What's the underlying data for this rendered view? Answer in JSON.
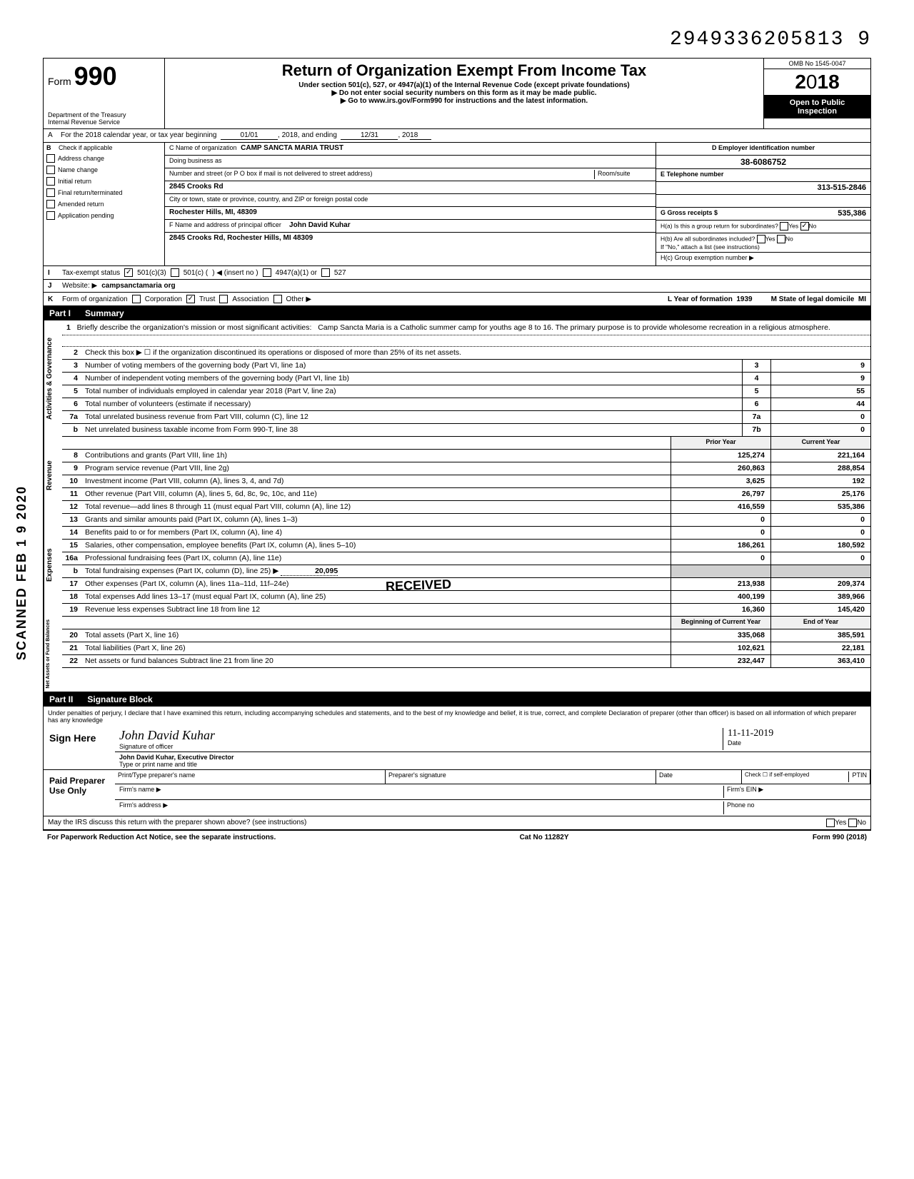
{
  "top_id": "2949336205813  9",
  "scanned_stamp": "SCANNED FEB 1 9 2020",
  "header": {
    "form_label": "Form",
    "form_number": "990",
    "dept": "Department of the Treasury",
    "irs": "Internal Revenue Service",
    "title": "Return of Organization Exempt From Income Tax",
    "subtitle": "Under section 501(c), 527, or 4947(a)(1) of the Internal Revenue Code (except private foundations)",
    "warn": "▶ Do not enter social security numbers on this form as it may be made public.",
    "goto": "▶ Go to www.irs.gov/Form990 for instructions and the latest information.",
    "omb": "OMB No 1545-0047",
    "year": "2018",
    "open1": "Open to Public",
    "open2": "Inspection"
  },
  "rowA": {
    "label": "A",
    "text1": "For the 2018 calendar year, or tax year beginning",
    "begin": "01/01",
    "mid": ", 2018, and ending",
    "end": "12/31",
    "tail": ", 20",
    "yy": "18"
  },
  "colB": {
    "label": "B",
    "hint": "Check if applicable",
    "items": [
      "Address change",
      "Name change",
      "Initial return",
      "Final return/terminated",
      "Amended return",
      "Application pending"
    ]
  },
  "colC": {
    "name_label": "C Name of organization",
    "name": "CAMP SANCTA MARIA TRUST",
    "dba_label": "Doing business as",
    "dba": "",
    "addr_label": "Number and street (or P O  box if mail is not delivered to street address)",
    "room_label": "Room/suite",
    "addr": "2845 Crooks Rd",
    "city_label": "City or town, state or province, country, and ZIP or foreign postal code",
    "city": "Rochester Hills, MI,  48309",
    "f_label": "F Name and address of principal officer",
    "f_name": "John David Kuhar",
    "f_addr": "2845 Crooks Rd, Rochester Hills, MI 48309"
  },
  "colD": {
    "d_label": "D Employer identification number",
    "ein": "38-6086752",
    "e_label": "E Telephone number",
    "phone": "313-515-2846",
    "g_label": "G Gross receipts $",
    "gross": "535,386",
    "ha": "H(a) Is this a group return for subordinates?",
    "ha_yes": "Yes",
    "ha_no": "No",
    "hb": "H(b) Are all subordinates included?",
    "hb_tail": "If \"No,\" attach a list  (see instructions)",
    "hc": "H(c) Group exemption number ▶"
  },
  "rowI": {
    "label": "I",
    "text": "Tax-exempt status",
    "opt1": "501(c)(3)",
    "opt2": "501(c) (",
    "insert": ") ◀ (insert no )",
    "opt3": "4947(a)(1) or",
    "opt4": "527"
  },
  "rowJ": {
    "label": "J",
    "text": "Website: ▶",
    "site": "campsanctamaria org"
  },
  "rowK": {
    "label": "K",
    "text": "Form of organization",
    "opts": [
      "Corporation",
      "Trust",
      "Association",
      "Other ▶"
    ],
    "l_label": "L Year of formation",
    "l_val": "1939",
    "m_label": "M State of legal domicile",
    "m_val": "MI"
  },
  "part1": {
    "label": "Part I",
    "title": "Summary"
  },
  "mission": {
    "num": "1",
    "lead": "Briefly describe the organization's mission or most significant activities:",
    "text": "Camp Sancta Maria is a Catholic summer camp for youths age 8 to 16. The primary purpose is to provide wholesome recreation in a religious atmosphere."
  },
  "line2": {
    "num": "2",
    "text": "Check this box ▶ ☐ if the organization discontinued its operations or disposed of more than 25% of its net assets."
  },
  "gov_lines": [
    {
      "num": "3",
      "desc": "Number of voting members of the governing body (Part VI, line 1a)",
      "ref": "3",
      "val": "9"
    },
    {
      "num": "4",
      "desc": "Number of independent voting members of the governing body (Part VI, line 1b)",
      "ref": "4",
      "val": "9"
    },
    {
      "num": "5",
      "desc": "Total number of individuals employed in calendar year 2018 (Part V, line 2a)",
      "ref": "5",
      "val": "55"
    },
    {
      "num": "6",
      "desc": "Total number of volunteers (estimate if necessary)",
      "ref": "6",
      "val": "44"
    },
    {
      "num": "7a",
      "desc": "Total unrelated business revenue from Part VIII, column (C), line 12",
      "ref": "7a",
      "val": "0"
    },
    {
      "num": "b",
      "desc": "Net unrelated business taxable income from Form 990-T, line 38",
      "ref": "7b",
      "val": "0"
    }
  ],
  "col_headers": {
    "prior": "Prior Year",
    "curr": "Current Year"
  },
  "revenue_lines": [
    {
      "num": "8",
      "desc": "Contributions and grants (Part VIII, line 1h)",
      "prior": "125,274",
      "curr": "221,164"
    },
    {
      "num": "9",
      "desc": "Program service revenue (Part VIII, line 2g)",
      "prior": "260,863",
      "curr": "288,854"
    },
    {
      "num": "10",
      "desc": "Investment income (Part VIII, column (A), lines 3, 4, and 7d)",
      "prior": "3,625",
      "curr": "192"
    },
    {
      "num": "11",
      "desc": "Other revenue (Part VIII, column (A), lines 5, 6d, 8c, 9c, 10c, and 11e)",
      "prior": "26,797",
      "curr": "25,176"
    },
    {
      "num": "12",
      "desc": "Total revenue—add lines 8 through 11 (must equal Part VIII, column (A), line 12)",
      "prior": "416,559",
      "curr": "535,386"
    }
  ],
  "expense_lines": [
    {
      "num": "13",
      "desc": "Grants and similar amounts paid (Part IX, column (A), lines 1–3)",
      "prior": "0",
      "curr": "0"
    },
    {
      "num": "14",
      "desc": "Benefits paid to or for members (Part IX, column (A), line 4)",
      "prior": "0",
      "curr": "0"
    },
    {
      "num": "15",
      "desc": "Salaries, other compensation, employee benefits (Part IX, column (A), lines 5–10)",
      "prior": "186,261",
      "curr": "180,592"
    },
    {
      "num": "16a",
      "desc": "Professional fundraising fees (Part IX, column (A), line 11e)",
      "prior": "0",
      "curr": "0"
    }
  ],
  "line16b": {
    "num": "b",
    "desc": "Total fundraising expenses (Part IX, column (D), line 25) ▶",
    "val": "20,095"
  },
  "expense_lines2": [
    {
      "num": "17",
      "desc": "Other expenses (Part IX, column (A), lines 11a–11d, 11f–24e)",
      "prior": "213,938",
      "curr": "209,374"
    },
    {
      "num": "18",
      "desc": "Total expenses  Add lines 13–17 (must equal Part IX, column (A), line 25)",
      "prior": "400,199",
      "curr": "389,966"
    },
    {
      "num": "19",
      "desc": "Revenue less expenses  Subtract line 18 from line 12",
      "prior": "16,360",
      "curr": "145,420"
    }
  ],
  "col_headers2": {
    "prior": "Beginning of Current Year",
    "curr": "End of Year"
  },
  "net_lines": [
    {
      "num": "20",
      "desc": "Total assets (Part X, line 16)",
      "prior": "335,068",
      "curr": "385,591"
    },
    {
      "num": "21",
      "desc": "Total liabilities (Part X, line 26)",
      "prior": "102,621",
      "curr": "22,181"
    },
    {
      "num": "22",
      "desc": "Net assets or fund balances  Subtract line 21 from line 20",
      "prior": "232,447",
      "curr": "363,410"
    }
  ],
  "side_labels": {
    "gov": "Activities & Governance",
    "rev": "Revenue",
    "exp": "Expenses",
    "net": "Net Assets or\nFund Balances"
  },
  "part2": {
    "label": "Part II",
    "title": "Signature Block"
  },
  "perjury": "Under penalties of perjury, I declare that I have examined this return, including accompanying schedules and statements, and to the best of my knowledge and belief, it is true, correct, and complete  Declaration of preparer (other than officer) is based on all information of which preparer has any knowledge",
  "sign": {
    "here": "Sign Here",
    "sig_label": "Signature of officer",
    "date_label": "Date",
    "date": "11-11-2019",
    "name": "John David Kuhar, Executive Director",
    "type_label": "Type or print name and title"
  },
  "paid": {
    "label": "Paid Preparer Use Only",
    "c1": "Print/Type preparer's name",
    "c2": "Preparer's signature",
    "c3": "Date",
    "c4a": "Check ☐ if self-employed",
    "c4b": "PTIN",
    "firm_name": "Firm's name    ▶",
    "firm_ein": "Firm's EIN ▶",
    "firm_addr": "Firm's address ▶",
    "phone": "Phone no"
  },
  "discuss": {
    "text": "May the IRS discuss this return with the preparer shown above? (see instructions)",
    "yes": "Yes",
    "no": "No"
  },
  "footer": {
    "left": "For Paperwork Reduction Act Notice, see the separate instructions.",
    "mid": "Cat No  11282Y",
    "right": "Form 990 (2018)"
  },
  "received_stamp": "RECEIVED"
}
